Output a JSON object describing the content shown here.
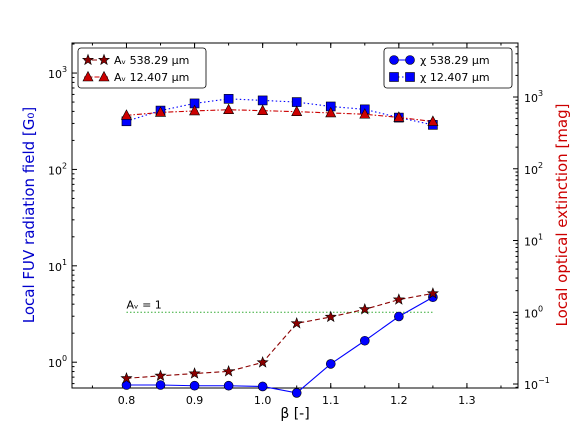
{
  "chart_data": {
    "type": "line",
    "xlabel": "β [-]",
    "xlim": [
      0.72,
      1.375
    ],
    "xticks": [
      "0.8",
      "0.9",
      "1.0",
      "1.1",
      "1.2",
      "1.3"
    ],
    "left_axis": {
      "label": "Local FUV radiation field [G₀]",
      "scale": "log",
      "lim": [
        0.54,
        2050
      ],
      "ticks": [
        {
          "value": 1,
          "base": "10",
          "exp": "0"
        },
        {
          "value": 10,
          "base": "10",
          "exp": "1"
        },
        {
          "value": 100,
          "base": "10",
          "exp": "2"
        },
        {
          "value": 1000,
          "base": "10",
          "exp": "3"
        }
      ],
      "color": "#0000cc"
    },
    "right_axis": {
      "label": "Local optical extinction [mag]",
      "scale": "log",
      "lim": [
        0.088,
        5660
      ],
      "ticks": [
        {
          "value": 0.1,
          "base": "10",
          "exp": "−1"
        },
        {
          "value": 1,
          "base": "10",
          "exp": "0"
        },
        {
          "value": 10,
          "base": "10",
          "exp": "1"
        },
        {
          "value": 100,
          "base": "10",
          "exp": "2"
        },
        {
          "value": 1000,
          "base": "10",
          "exp": "3"
        }
      ],
      "color": "#cc0000"
    },
    "x": [
      0.8,
      0.85,
      0.9,
      0.95,
      1.0,
      1.05,
      1.1,
      1.15,
      1.2,
      1.25
    ],
    "series": [
      {
        "name": "χ 538.29 μm",
        "axis": "left",
        "color": "#0000ff",
        "marker": "circle",
        "linestyle": "solid",
        "values": [
          0.58,
          0.58,
          0.57,
          0.57,
          0.56,
          0.48,
          0.96,
          1.67,
          2.98,
          4.72
        ]
      },
      {
        "name": "χ 12.407 μm",
        "axis": "left",
        "color": "#0000ff",
        "marker": "square",
        "linestyle": "dotted",
        "values": [
          316,
          408,
          484,
          540,
          520,
          500,
          450,
          420,
          345,
          290
        ]
      },
      {
        "name": "Aᵥ 538.29 μm",
        "axis": "right",
        "color": "#8b0000",
        "marker": "star",
        "linestyle": "dashed",
        "values": [
          0.12,
          0.13,
          0.14,
          0.15,
          0.2,
          0.7,
          0.86,
          1.1,
          1.5,
          1.83
        ]
      },
      {
        "name": "Aᵥ 12.407 μm",
        "axis": "right",
        "color": "#cc0000",
        "marker": "triangle",
        "linestyle": "dashdot",
        "values": [
          555,
          610,
          640,
          665,
          645,
          625,
          600,
          575,
          520,
          455
        ]
      }
    ],
    "annotations": [
      {
        "text": "Aᵥ = 1",
        "axis": "right",
        "y": 1.0,
        "x_start": 0.8,
        "x_end": 1.25,
        "color": "#33aa33",
        "linestyle": "dotted"
      }
    ],
    "legends": [
      {
        "position": "upper-left",
        "entries": [
          "Aᵥ 538.29 μm",
          "Aᵥ 12.407 μm"
        ]
      },
      {
        "position": "upper-right",
        "entries": [
          "χ 538.29 μm",
          "χ 12.407 μm"
        ]
      }
    ]
  }
}
